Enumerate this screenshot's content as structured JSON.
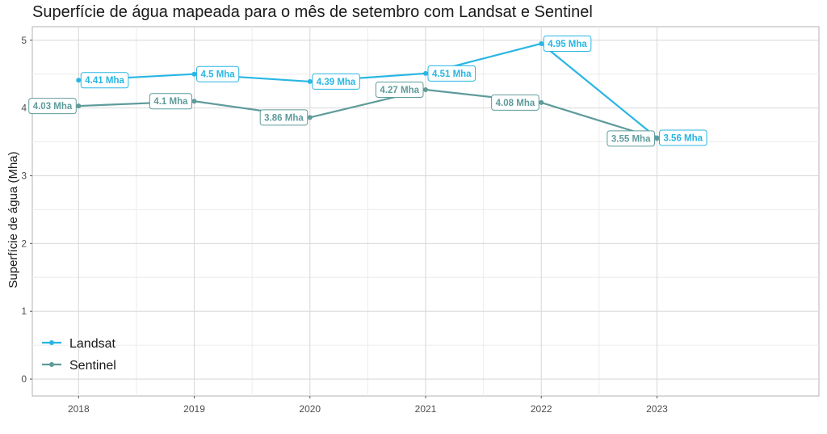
{
  "chart_data": {
    "type": "line",
    "title": "Superfície de água mapeada para o mês de setembro com Landsat e Sentinel",
    "xlabel": "",
    "ylabel": "Superfície de água (Mha)",
    "x": [
      2018,
      2019,
      2020,
      2021,
      2022,
      2023
    ],
    "xlim": [
      2017.6,
      2024.4
    ],
    "ylim": [
      -0.25,
      5.2
    ],
    "y_ticks": [
      0,
      1,
      2,
      3,
      4,
      5
    ],
    "grid": true,
    "legend_position": "bottom-left",
    "series": [
      {
        "name": "Landsat",
        "color": "#29B6E3",
        "values": [
          4.41,
          4.5,
          4.39,
          4.51,
          4.95,
          3.56
        ],
        "labels": [
          "4.41 Mha",
          "4.5 Mha",
          "4.39 Mha",
          "4.51 Mha",
          "4.95 Mha",
          "3.56 Mha"
        ]
      },
      {
        "name": "Sentinel",
        "color": "#5F9B9B",
        "values": [
          4.03,
          4.1,
          3.86,
          4.27,
          4.08,
          3.55
        ],
        "labels": [
          "4.03 Mha",
          "4.1 Mha",
          "3.86 Mha",
          "4.27 Mha",
          "4.08 Mha",
          "3.55 Mha"
        ]
      }
    ]
  }
}
